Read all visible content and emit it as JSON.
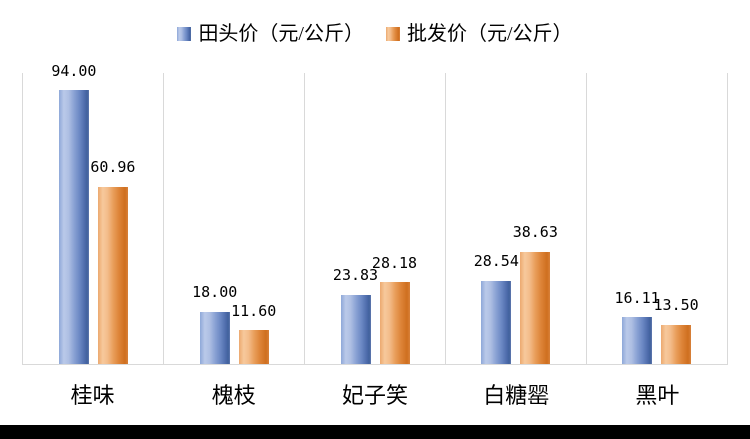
{
  "chart_data": {
    "type": "bar",
    "title": "",
    "categories": [
      "桂味",
      "槐枝",
      "妃子笑",
      "白糖罂",
      "黑叶"
    ],
    "series": [
      {
        "name": "田头价（元/公斤）",
        "values": [
          94.0,
          18.0,
          23.83,
          28.54,
          16.11
        ],
        "labels": [
          "94.00",
          "18.00",
          "23.83",
          "28.54",
          "16.11"
        ],
        "color": "#4a68a8"
      },
      {
        "name": "批发价（元/公斤）",
        "values": [
          60.96,
          11.6,
          28.18,
          38.63,
          13.5
        ],
        "labels": [
          "60.96",
          "11.60",
          "28.18",
          "38.63",
          "13.50"
        ],
        "color": "#d97b2b"
      }
    ],
    "xlabel": "",
    "ylabel": "",
    "ylim": [
      0,
      100
    ],
    "legend_position": "top-center",
    "grid": "vertical category separators only",
    "axis_color": "#d9d9d9",
    "data_labels": "outside-end, black"
  },
  "legend": {
    "items": [
      {
        "label": "田头价（元/公斤）",
        "color": "#4a68a8"
      },
      {
        "label": "批发价（元/公斤）",
        "color": "#d97b2b"
      }
    ]
  },
  "decor": {
    "bottom_bar_color": "#000000",
    "background_color": "#ffffff"
  }
}
